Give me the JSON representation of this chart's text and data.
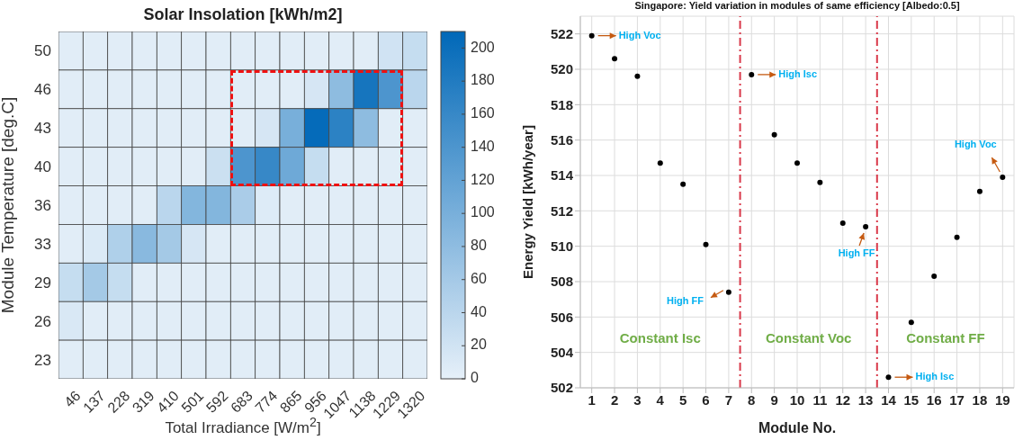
{
  "chart_data": [
    {
      "type": "heatmap",
      "title": "Solar Insolation [kWh/m2]",
      "xlabel": "Total Irradiance [W/m$^{2}$]",
      "ylabel": "Module Temperature [deg.C]",
      "categories": [
        "46",
        "137",
        "228",
        "319",
        "410",
        "501",
        "592",
        "683",
        "774",
        "865",
        "956",
        "1047",
        "1138",
        "1229",
        "1320"
      ],
      "y_categories": [
        "50",
        "46",
        "43",
        "40",
        "36",
        "33",
        "29",
        "26",
        "23"
      ],
      "cells": [
        [
          5,
          5,
          5,
          5,
          5,
          5,
          5,
          5,
          5,
          5,
          5,
          5,
          5,
          20,
          30
        ],
        [
          5,
          5,
          5,
          5,
          5,
          5,
          5,
          5,
          5,
          5,
          15,
          80,
          190,
          140,
          40
        ],
        [
          5,
          5,
          5,
          5,
          5,
          5,
          5,
          5,
          15,
          100,
          205,
          170,
          80,
          5,
          5
        ],
        [
          5,
          5,
          5,
          5,
          5,
          5,
          25,
          140,
          160,
          110,
          30,
          5,
          5,
          5,
          5
        ],
        [
          5,
          5,
          5,
          5,
          40,
          90,
          90,
          55,
          8,
          5,
          5,
          5,
          5,
          5,
          5
        ],
        [
          5,
          10,
          50,
          85,
          60,
          15,
          5,
          5,
          5,
          5,
          5,
          5,
          5,
          5,
          5
        ],
        [
          30,
          60,
          30,
          5,
          5,
          5,
          5,
          5,
          5,
          5,
          5,
          5,
          5,
          5,
          5
        ],
        [
          12,
          5,
          5,
          5,
          5,
          5,
          5,
          5,
          5,
          5,
          5,
          5,
          5,
          5,
          5
        ],
        [
          5,
          5,
          5,
          5,
          5,
          5,
          5,
          5,
          5,
          5,
          5,
          5,
          5,
          5,
          5
        ]
      ],
      "clim": [
        0,
        210
      ],
      "cticks": [
        0,
        20,
        40,
        60,
        80,
        100,
        120,
        140,
        160,
        180,
        200
      ]
    },
    {
      "type": "scatter",
      "title": "Singapore: Yield variation in modules of same efficiency [Albedo:0.5]",
      "xlabel": "Module No.",
      "ylabel": "Energy Yield [kWh/year]",
      "x": [
        1,
        2,
        3,
        4,
        5,
        6,
        7,
        8,
        9,
        10,
        11,
        12,
        13,
        14,
        15,
        16,
        17,
        18,
        19
      ],
      "series": [
        {
          "color": "#000000",
          "values": [
            521.9,
            520.6,
            519.6,
            514.7,
            513.5,
            510.1,
            507.4,
            519.7,
            516.3,
            514.7,
            513.6,
            511.3,
            511.1,
            502.6,
            505.7,
            508.3,
            510.5,
            513.1,
            513.9
          ]
        }
      ],
      "xlim": [
        0.5,
        19.5
      ],
      "xticks": [
        1,
        2,
        3,
        4,
        5,
        6,
        7,
        8,
        9,
        10,
        11,
        12,
        13,
        14,
        15,
        16,
        17,
        18,
        19
      ],
      "ylim": [
        502,
        523
      ],
      "yticks": [
        502,
        504,
        506,
        508,
        510,
        512,
        514,
        516,
        518,
        520,
        522
      ],
      "grid": true,
      "marker": "circle",
      "ref_lines": [
        {
          "axis": "x",
          "value": 7.5,
          "color": "#d9394a",
          "line_style": "dashed"
        },
        {
          "axis": "x",
          "value": 13.5,
          "color": "#d9394a",
          "line_style": "dashed"
        }
      ],
      "annotations": [
        {
          "text": "High Voc",
          "x": 1,
          "y": 521.9
        },
        {
          "text": "High Isc",
          "x": 8,
          "y": 519.7
        },
        {
          "text": "High FF",
          "x": 7,
          "y": 507.4
        },
        {
          "text": "High FF",
          "x": 13,
          "y": 511.1
        },
        {
          "text": "High Isc",
          "x": 14,
          "y": 502.6
        },
        {
          "text": "High Voc",
          "x": 19,
          "y": 513.9
        },
        "Constant Isc",
        "Constant Voc",
        "Constant FF"
      ]
    }
  ]
}
